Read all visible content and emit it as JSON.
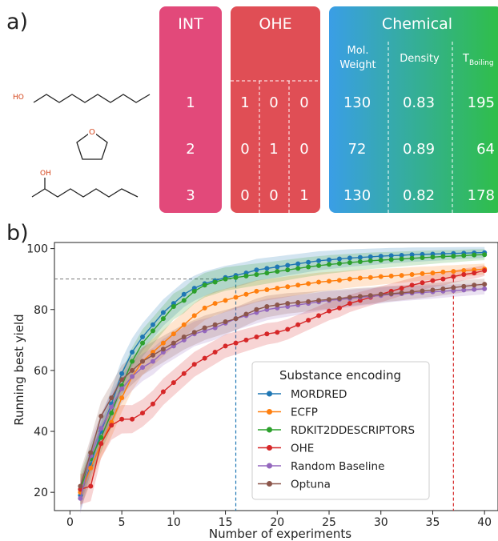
{
  "panel_a": {
    "label": "a)",
    "molecules": [
      {
        "name": "octan-1-ol",
        "atom_label": "HO"
      },
      {
        "name": "tetrahydrofuran",
        "atom_label": "O"
      },
      {
        "name": "octan-2-ol",
        "atom_label": "OH"
      }
    ],
    "int_block": {
      "title": "INT",
      "values": [
        "1",
        "2",
        "3"
      ],
      "color": "#e2497a"
    },
    "ohe_block": {
      "title": "OHE",
      "rows": [
        [
          "1",
          "0",
          "0"
        ],
        [
          "0",
          "1",
          "0"
        ],
        [
          "0",
          "0",
          "1"
        ]
      ],
      "color": "#e04e55"
    },
    "chemical_block": {
      "title": "Chemical",
      "headers": {
        "mol_weight": [
          "Mol.",
          "Weight"
        ],
        "density": "Density",
        "tboiling_main": "T",
        "tboiling_sub": "Boiling"
      },
      "rows": [
        [
          "130",
          "0.83",
          "195"
        ],
        [
          "72",
          "0.89",
          "64"
        ],
        [
          "130",
          "0.82",
          "178"
        ]
      ],
      "gradient": [
        "#3b9be6",
        "#2fbf4a"
      ]
    }
  },
  "panel_b": {
    "label": "b)"
  },
  "chart_data": {
    "type": "line",
    "title": "",
    "xlabel": "Number of experiments",
    "ylabel": "Running best yield",
    "xlim": [
      -1.5,
      41.3
    ],
    "ylim": [
      14,
      102
    ],
    "xticks": [
      "0",
      "5",
      "10",
      "15",
      "20",
      "25",
      "30",
      "35",
      "40"
    ],
    "yticks": [
      "20",
      "40",
      "60",
      "80",
      "100"
    ],
    "legend": {
      "title": "Substance encoding",
      "position": "lower-right"
    },
    "reference_lines": {
      "y": 90,
      "x_mordred": 16,
      "x_ohe": 37
    },
    "x": [
      1,
      2,
      3,
      4,
      5,
      6,
      7,
      8,
      9,
      10,
      11,
      12,
      13,
      14,
      15,
      16,
      17,
      18,
      19,
      20,
      21,
      22,
      23,
      24,
      25,
      26,
      27,
      28,
      29,
      30,
      31,
      32,
      33,
      34,
      35,
      36,
      37,
      38,
      39,
      40
    ],
    "series": [
      {
        "name": "MORDRED",
        "color": "#1f77b4",
        "values": [
          19,
          29,
          40,
          49,
          59,
          66,
          71,
          75,
          79,
          82,
          85,
          87,
          88.5,
          89.5,
          90.5,
          91.2,
          92,
          93,
          93.5,
          94,
          94.5,
          95,
          95.5,
          96,
          96.3,
          96.6,
          96.9,
          97.1,
          97.3,
          97.5,
          97.7,
          97.8,
          98,
          98.1,
          98.2,
          98.3,
          98.4,
          98.5,
          98.6,
          98.7
        ]
      },
      {
        "name": "ECFP",
        "color": "#ff7f0e",
        "values": [
          20,
          28,
          36,
          43,
          51,
          58,
          63,
          66,
          69,
          72,
          75,
          78,
          80.5,
          82,
          83,
          84,
          85,
          86,
          86.5,
          87,
          87.5,
          88,
          88.5,
          89,
          89.3,
          89.6,
          90,
          90.3,
          90.5,
          90.8,
          91,
          91.2,
          91.5,
          91.8,
          92,
          92.3,
          92.5,
          92.8,
          93,
          93.3
        ]
      },
      {
        "name": "RDKIT2DDESCRIPTORS",
        "color": "#2ca02c",
        "values": [
          21,
          31,
          38,
          46,
          55,
          63,
          69,
          73,
          77,
          81,
          83,
          86,
          88,
          89,
          90,
          90.5,
          91,
          91.5,
          92,
          92.5,
          93,
          93.5,
          94,
          94.4,
          94.8,
          95.1,
          95.4,
          95.7,
          96,
          96.2,
          96.4,
          96.6,
          96.8,
          97,
          97.2,
          97.4,
          97.5,
          97.7,
          97.9,
          98
        ]
      },
      {
        "name": "OHE",
        "color": "#d62728",
        "values": [
          21,
          22,
          36,
          42,
          44,
          44,
          46,
          49,
          53,
          56,
          59,
          62,
          64,
          66,
          68,
          69,
          70,
          71,
          72,
          72.5,
          73.5,
          75,
          76.5,
          78,
          79.5,
          80.5,
          82,
          83,
          84,
          85,
          86,
          87,
          88,
          88.8,
          89.5,
          90,
          90.8,
          91.5,
          92,
          92.8
        ]
      },
      {
        "name": "Random Baseline",
        "color": "#9467bd",
        "values": [
          18,
          32,
          41,
          48,
          54,
          58,
          61,
          63,
          66,
          68,
          70,
          72,
          73,
          74,
          75.5,
          77,
          78,
          79,
          80,
          80.5,
          81,
          81.5,
          82,
          82.5,
          83,
          83.3,
          83.6,
          84,
          84.3,
          84.6,
          85,
          85.2,
          85.4,
          85.6,
          85.8,
          86,
          86.2,
          86.4,
          86.6,
          86.8
        ]
      },
      {
        "name": "Optuna",
        "color": "#8c564b",
        "values": [
          22,
          33,
          45,
          51,
          57,
          60,
          63,
          65,
          67,
          69,
          71,
          72.5,
          74,
          75,
          76,
          77,
          78.5,
          80,
          81,
          81.5,
          82,
          82.3,
          82.6,
          83,
          83.3,
          83.6,
          84,
          84.3,
          84.6,
          85,
          85.2,
          85.5,
          85.8,
          86.1,
          86.4,
          86.8,
          87.2,
          87.6,
          88,
          88.3
        ]
      }
    ]
  }
}
